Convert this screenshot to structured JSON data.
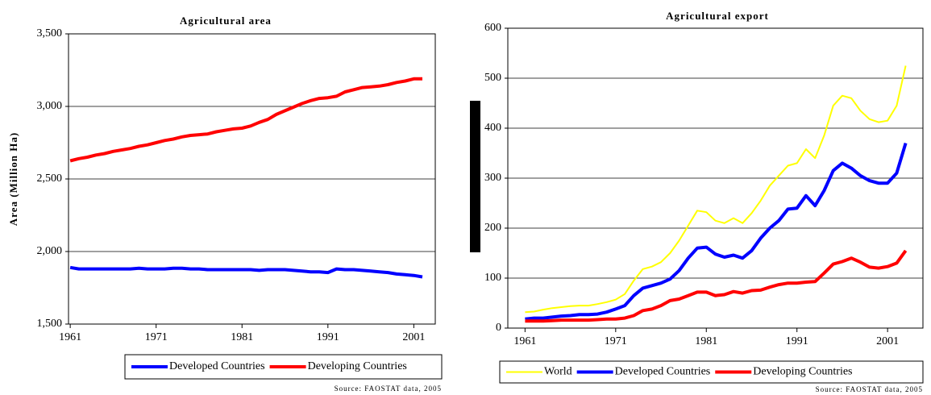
{
  "chart_data": [
    {
      "type": "line",
      "title": "Agricultural area",
      "y_label": "Area (Million Ha)",
      "x": [
        1961,
        1962,
        1963,
        1964,
        1965,
        1966,
        1967,
        1968,
        1969,
        1970,
        1971,
        1972,
        1973,
        1974,
        1975,
        1976,
        1977,
        1978,
        1979,
        1980,
        1981,
        1982,
        1983,
        1984,
        1985,
        1986,
        1987,
        1988,
        1989,
        1990,
        1991,
        1992,
        1993,
        1994,
        1995,
        1996,
        1997,
        1998,
        1999,
        2000,
        2001,
        2002
      ],
      "xlim": [
        1960.8,
        2003.5
      ],
      "xticks": [
        1961,
        1971,
        1981,
        1991,
        2001
      ],
      "ylim": [
        1500,
        3500
      ],
      "yticks": [
        {
          "value": 1500,
          "label": "1,500"
        },
        {
          "value": 2000,
          "label": "2,000"
        },
        {
          "value": 2500,
          "label": "2,500"
        },
        {
          "value": 3000,
          "label": "3,000"
        },
        {
          "value": 3500,
          "label": "3,500"
        }
      ],
      "grid": true,
      "series": [
        {
          "name": "Developed Countries",
          "color": "#0000ff",
          "values": [
            1890,
            1880,
            1880,
            1880,
            1880,
            1880,
            1880,
            1880,
            1885,
            1880,
            1880,
            1880,
            1885,
            1885,
            1880,
            1880,
            1875,
            1875,
            1875,
            1875,
            1875,
            1875,
            1870,
            1875,
            1875,
            1875,
            1870,
            1865,
            1860,
            1860,
            1855,
            1880,
            1875,
            1875,
            1870,
            1865,
            1860,
            1855,
            1845,
            1840,
            1835,
            1825
          ]
        },
        {
          "name": "Developing Countries",
          "color": "#ff0000",
          "values": [
            2625,
            2640,
            2650,
            2665,
            2675,
            2690,
            2700,
            2710,
            2725,
            2735,
            2750,
            2765,
            2775,
            2790,
            2800,
            2805,
            2810,
            2825,
            2835,
            2845,
            2850,
            2865,
            2890,
            2910,
            2945,
            2970,
            2995,
            3020,
            3040,
            3055,
            3060,
            3070,
            3100,
            3115,
            3130,
            3135,
            3140,
            3150,
            3165,
            3175,
            3190,
            3190
          ]
        }
      ],
      "source": "Source: FAOSTAT data, 2005"
    },
    {
      "type": "line",
      "title": "Agricultural export",
      "x": [
        1961,
        1962,
        1963,
        1964,
        1965,
        1966,
        1967,
        1968,
        1969,
        1970,
        1971,
        1972,
        1973,
        1974,
        1975,
        1976,
        1977,
        1978,
        1979,
        1980,
        1981,
        1982,
        1983,
        1984,
        1985,
        1986,
        1987,
        1988,
        1989,
        1990,
        1991,
        1992,
        1993,
        1994,
        1995,
        1996,
        1997,
        1998,
        1999,
        2000,
        2001,
        2002,
        2003
      ],
      "xlim": [
        1959.1,
        2004.9
      ],
      "xticks": [
        1961,
        1971,
        1981,
        1991,
        2001
      ],
      "ylim": [
        0,
        600
      ],
      "yticks": [
        0,
        100,
        200,
        300,
        400,
        500,
        600
      ],
      "grid": true,
      "series": [
        {
          "name": "World",
          "color": "#ffff00",
          "values": [
            32,
            33,
            37,
            40,
            42,
            44,
            45,
            45,
            48,
            52,
            57,
            68,
            95,
            118,
            123,
            132,
            150,
            175,
            205,
            235,
            232,
            215,
            210,
            220,
            210,
            230,
            255,
            285,
            305,
            325,
            330,
            358,
            340,
            385,
            445,
            465,
            460,
            435,
            418,
            412,
            415,
            445,
            525
          ]
        },
        {
          "name": "Developed Countries",
          "color": "#0000ff",
          "values": [
            18,
            20,
            20,
            22,
            24,
            25,
            27,
            27,
            28,
            32,
            38,
            45,
            65,
            80,
            85,
            90,
            98,
            115,
            140,
            160,
            162,
            148,
            142,
            146,
            140,
            155,
            180,
            200,
            215,
            238,
            240,
            265,
            245,
            275,
            315,
            330,
            320,
            305,
            295,
            290,
            290,
            310,
            370
          ]
        },
        {
          "name": "Developing Countries",
          "color": "#ff0000",
          "values": [
            14,
            14,
            14,
            15,
            16,
            16,
            16,
            16,
            17,
            18,
            18,
            20,
            25,
            35,
            38,
            45,
            55,
            58,
            65,
            72,
            72,
            65,
            67,
            73,
            70,
            75,
            76,
            82,
            87,
            90,
            90,
            92,
            93,
            110,
            128,
            133,
            140,
            132,
            122,
            120,
            123,
            130,
            155
          ]
        }
      ],
      "source": "Source: FAOSTAT data, 2005"
    }
  ]
}
